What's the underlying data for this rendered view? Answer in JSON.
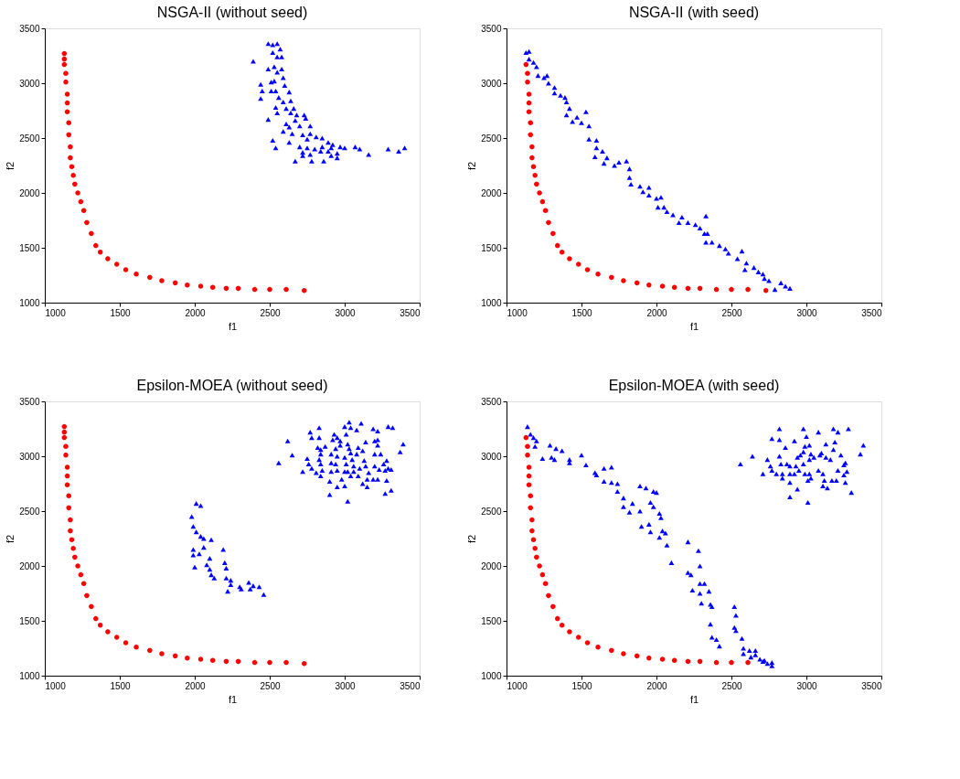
{
  "chart_data": [
    {
      "type": "scatter",
      "title": "NSGA-II (without seed)",
      "xlabel": "f1",
      "ylabel": "f2",
      "xlim": [
        1000,
        3500
      ],
      "ylim": [
        1000,
        3500
      ],
      "xticks": [
        1000,
        1500,
        2000,
        2500,
        3000,
        3500
      ],
      "yticks": [
        1000,
        1500,
        2000,
        2500,
        3000,
        3500
      ],
      "grid": false,
      "series": [
        {
          "color": "#ff0000",
          "marker": "circle",
          "x": [
            1130,
            1130,
            1130,
            1140,
            1140,
            1150,
            1150,
            1150,
            1160,
            1160,
            1170,
            1170,
            1180,
            1190,
            1200,
            1220,
            1240,
            1260,
            1280,
            1310,
            1340,
            1370,
            1420,
            1480,
            1540,
            1610,
            1700,
            1780,
            1870,
            1950,
            2040,
            2120,
            2210,
            2290,
            2400,
            2500,
            2610,
            2730
          ],
          "values": [
            3270,
            3220,
            3170,
            3090,
            3010,
            2900,
            2820,
            2740,
            2640,
            2530,
            2420,
            2320,
            2240,
            2160,
            2080,
            2000,
            1920,
            1840,
            1730,
            1630,
            1520,
            1460,
            1400,
            1350,
            1300,
            1260,
            1230,
            1200,
            1180,
            1160,
            1150,
            1140,
            1130,
            1130,
            1120,
            1120,
            1120,
            1110
          ]
        },
        {
          "color": "#0000ff",
          "marker": "triangle",
          "x": [
            2490,
            2520,
            2550,
            2570,
            2520,
            2550,
            2580,
            2390,
            2490,
            2530,
            2580,
            2550,
            2590,
            2510,
            2530,
            2440,
            2600,
            2450,
            2510,
            2540,
            2630,
            2440,
            2560,
            2590,
            2640,
            2540,
            2610,
            2660,
            2550,
            2640,
            2680,
            2730,
            2490,
            2610,
            2670,
            2740,
            2770,
            2630,
            2700,
            2590,
            2650,
            2720,
            2770,
            2520,
            2630,
            2750,
            2810,
            2850,
            2890,
            2920,
            2540,
            2700,
            2750,
            2800,
            2850,
            2910,
            2970,
            3000,
            2720,
            2770,
            2840,
            2890,
            2950,
            3070,
            3100,
            2720,
            2910,
            2950,
            3160,
            3290,
            3360,
            3400,
            2670,
            2780,
            2860
          ],
          "values": [
            3360,
            3350,
            3360,
            3310,
            3280,
            3240,
            3240,
            3200,
            3130,
            3150,
            3130,
            3100,
            3050,
            3010,
            3020,
            2990,
            2980,
            2930,
            2930,
            2930,
            2920,
            2860,
            2870,
            2830,
            2840,
            2780,
            2770,
            2770,
            2730,
            2730,
            2710,
            2710,
            2670,
            2630,
            2660,
            2680,
            2610,
            2600,
            2610,
            2560,
            2540,
            2530,
            2540,
            2480,
            2460,
            2490,
            2510,
            2500,
            2460,
            2440,
            2410,
            2420,
            2410,
            2400,
            2420,
            2410,
            2420,
            2410,
            2370,
            2350,
            2380,
            2380,
            2360,
            2420,
            2400,
            2340,
            2340,
            2320,
            2350,
            2400,
            2380,
            2410,
            2290,
            2290,
            2290
          ]
        }
      ]
    },
    {
      "type": "scatter",
      "title": "NSGA-II (with seed)",
      "xlabel": "f1",
      "ylabel": "f2",
      "xlim": [
        1000,
        3500
      ],
      "ylim": [
        1000,
        3500
      ],
      "xticks": [
        1000,
        1500,
        2000,
        2500,
        3000,
        3500
      ],
      "yticks": [
        1000,
        1500,
        2000,
        2500,
        3000,
        3500
      ],
      "grid": false,
      "series": [
        {
          "color": "#ff0000",
          "marker": "circle",
          "x": [
            1130,
            1140,
            1140,
            1150,
            1150,
            1150,
            1160,
            1160,
            1170,
            1170,
            1180,
            1190,
            1200,
            1220,
            1240,
            1260,
            1280,
            1310,
            1340,
            1370,
            1420,
            1480,
            1540,
            1610,
            1700,
            1780,
            1870,
            1950,
            2040,
            2120,
            2210,
            2290,
            2400,
            2500,
            2610,
            2730
          ],
          "values": [
            3170,
            3090,
            3010,
            2900,
            2820,
            2740,
            2640,
            2530,
            2420,
            2320,
            2240,
            2160,
            2080,
            2000,
            1920,
            1840,
            1730,
            1630,
            1520,
            1460,
            1400,
            1350,
            1300,
            1260,
            1230,
            1200,
            1180,
            1160,
            1150,
            1140,
            1130,
            1130,
            1120,
            1120,
            1120,
            1110
          ]
        },
        {
          "color": "#0000ff",
          "marker": "triangle",
          "x": [
            1130,
            1150,
            1150,
            1180,
            1200,
            1210,
            1250,
            1270,
            1280,
            1320,
            1320,
            1360,
            1390,
            1400,
            1420,
            1400,
            1470,
            1440,
            1500,
            1530,
            1550,
            1550,
            1600,
            1600,
            1640,
            1590,
            1670,
            1650,
            1720,
            1750,
            1800,
            1820,
            1820,
            1830,
            1890,
            1910,
            1950,
            1950,
            2000,
            2030,
            2010,
            2050,
            2070,
            2110,
            2170,
            2150,
            2210,
            2260,
            2290,
            2330,
            2320,
            2340,
            2330,
            2370,
            2420,
            2460,
            2480,
            2540,
            2570,
            2600,
            2590,
            2650,
            2680,
            2710,
            2720,
            2750,
            2790,
            2830,
            2860,
            2890
          ],
          "values": [
            3280,
            3290,
            3220,
            3190,
            3150,
            3070,
            3050,
            3070,
            3000,
            2960,
            2910,
            2890,
            2870,
            2830,
            2770,
            2710,
            2690,
            2650,
            2640,
            2740,
            2610,
            2490,
            2480,
            2410,
            2380,
            2330,
            2320,
            2270,
            2250,
            2280,
            2290,
            2220,
            2140,
            2080,
            2060,
            2010,
            2050,
            1980,
            1950,
            1960,
            1870,
            1870,
            1830,
            1800,
            1780,
            1730,
            1730,
            1710,
            1680,
            1790,
            1630,
            1630,
            1550,
            1550,
            1520,
            1490,
            1450,
            1400,
            1470,
            1360,
            1300,
            1320,
            1280,
            1260,
            1220,
            1200,
            1120,
            1180,
            1150,
            1130
          ]
        }
      ]
    },
    {
      "type": "scatter",
      "title": "Epsilon-MOEA (without seed)",
      "xlabel": "f1",
      "ylabel": "f2",
      "xlim": [
        1000,
        3500
      ],
      "ylim": [
        1000,
        3500
      ],
      "xticks": [
        1000,
        1500,
        2000,
        2500,
        3000,
        3500
      ],
      "yticks": [
        1000,
        1500,
        2000,
        2500,
        3000,
        3500
      ],
      "grid": false,
      "series": [
        {
          "color": "#ff0000",
          "marker": "circle",
          "x": [
            1130,
            1130,
            1130,
            1140,
            1140,
            1150,
            1150,
            1150,
            1160,
            1160,
            1170,
            1170,
            1180,
            1190,
            1200,
            1220,
            1240,
            1260,
            1280,
            1310,
            1340,
            1370,
            1420,
            1480,
            1540,
            1610,
            1700,
            1780,
            1870,
            1950,
            2040,
            2120,
            2210,
            2290,
            2400,
            2500,
            2610,
            2730
          ],
          "values": [
            3270,
            3220,
            3170,
            3090,
            3010,
            2900,
            2820,
            2740,
            2640,
            2530,
            2420,
            2320,
            2240,
            2160,
            2080,
            2000,
            1920,
            1840,
            1730,
            1630,
            1520,
            1460,
            1400,
            1350,
            1300,
            1260,
            1230,
            1200,
            1180,
            1160,
            1150,
            1140,
            1130,
            1130,
            1120,
            1120,
            1120,
            1110
          ]
        },
        {
          "color": "#0000ff",
          "marker": "triangle",
          "x": [
            2010,
            2040,
            1980,
            1990,
            2010,
            2040,
            2060,
            2110,
            1990,
            2060,
            2190,
            2030,
            1990,
            2100,
            2000,
            2080,
            2200,
            2210,
            2100,
            2110,
            2130,
            2210,
            2240,
            2240,
            2220,
            2300,
            2360,
            2390,
            2430,
            2370,
            2310,
            2460
          ],
          "values": [
            2570,
            2550,
            2450,
            2360,
            2310,
            2270,
            2250,
            2240,
            2150,
            2170,
            2150,
            2110,
            2100,
            2070,
            1990,
            2010,
            2030,
            1980,
            1970,
            1920,
            1890,
            1890,
            1870,
            1830,
            1770,
            1810,
            1850,
            1820,
            1810,
            1790,
            1790,
            1740
          ]
        },
        {
          "color": "#0000ff",
          "marker": "triangle",
          "x": [
            2560,
            2620,
            2650,
            2720,
            2770,
            2780,
            2830,
            2830,
            2750,
            2760,
            2780,
            2810,
            2820,
            2840,
            2840,
            2870,
            2830,
            2840,
            2850,
            2840,
            2900,
            2900,
            2910,
            2910,
            2930,
            2920,
            2950,
            2940,
            2950,
            2940,
            2910,
            2950,
            2950,
            3000,
            2980,
            3000,
            3010,
            3000,
            2970,
            2970,
            3010,
            3000,
            3030,
            3040,
            3080,
            3110,
            3020,
            3030,
            3040,
            3050,
            3060,
            3020,
            3040,
            3060,
            3090,
            3100,
            3080,
            3090,
            3120,
            3140,
            3130,
            3140,
            3160,
            3150,
            3120,
            3150,
            3190,
            3220,
            3200,
            3220,
            3220,
            3200,
            3240,
            3200,
            3230,
            3190,
            3220,
            3270,
            3260,
            3280,
            3290,
            3310,
            3280,
            3270,
            3310,
            3290,
            3320,
            3370,
            3390,
            3020
          ],
          "values": [
            2940,
            3140,
            3010,
            2860,
            3220,
            3170,
            3260,
            3170,
            2980,
            2930,
            2890,
            2850,
            3080,
            3060,
            3020,
            3090,
            2970,
            2930,
            2870,
            2820,
            2770,
            2650,
            3020,
            2940,
            3200,
            3150,
            3170,
            3070,
            3000,
            2930,
            2860,
            2870,
            2720,
            2730,
            2790,
            2860,
            2930,
            2990,
            3100,
            3140,
            3200,
            3270,
            3310,
            3260,
            3240,
            3300,
            3110,
            3070,
            3030,
            2970,
            2910,
            2860,
            2820,
            2860,
            2820,
            2890,
            3020,
            3080,
            3050,
            3130,
            2960,
            2910,
            2850,
            2790,
            2750,
            2720,
            3250,
            3230,
            3140,
            3150,
            3100,
            3020,
            3020,
            2910,
            2880,
            2790,
            2790,
            2870,
            2930,
            2960,
            2890,
            2880,
            2780,
            2660,
            2690,
            3270,
            3260,
            3040,
            3110,
            2590
          ]
        }
      ]
    },
    {
      "type": "scatter",
      "title": "Epsilon-MOEA (with seed)",
      "xlabel": "f1",
      "ylabel": "f2",
      "xlim": [
        1000,
        3500
      ],
      "ylim": [
        1000,
        3500
      ],
      "xticks": [
        1000,
        1500,
        2000,
        2500,
        3000,
        3500
      ],
      "yticks": [
        1000,
        1500,
        2000,
        2500,
        3000,
        3500
      ],
      "grid": false,
      "series": [
        {
          "color": "#ff0000",
          "marker": "circle",
          "x": [
            1130,
            1140,
            1140,
            1150,
            1150,
            1150,
            1160,
            1160,
            1170,
            1170,
            1180,
            1190,
            1200,
            1220,
            1240,
            1260,
            1280,
            1310,
            1340,
            1370,
            1420,
            1480,
            1540,
            1610,
            1700,
            1780,
            1870,
            1950,
            2040,
            2120,
            2210,
            2290,
            2400,
            2500,
            2610
          ],
          "values": [
            3170,
            3090,
            3010,
            2900,
            2820,
            2740,
            2640,
            2530,
            2420,
            2320,
            2240,
            2160,
            2080,
            2000,
            1920,
            1840,
            1730,
            1630,
            1520,
            1460,
            1400,
            1350,
            1300,
            1260,
            1230,
            1200,
            1180,
            1160,
            1150,
            1140,
            1130,
            1130,
            1120,
            1120,
            1120
          ]
        },
        {
          "color": "#0000ff",
          "marker": "triangle",
          "x": [
            1140,
            1160,
            1180,
            1200,
            1190,
            1240,
            1290,
            1330,
            1370,
            1300,
            1320,
            1420,
            1420,
            1500,
            1530,
            1590,
            1600,
            1650,
            1700,
            1650,
            1700,
            1740,
            1740,
            1780,
            1840,
            1780,
            1820,
            1890,
            1930,
            1980,
            2000,
            1960,
            1980,
            1890,
            2020,
            2030,
            1900,
            1950,
            1960,
            2040,
            2060,
            2020,
            2070,
            2100,
            2210,
            2280,
            2290,
            2210,
            2230,
            2240,
            2290,
            2320,
            2290,
            2350,
            2300,
            2360,
            2370,
            2360,
            2370,
            2400,
            2420,
            2520,
            2530,
            2520,
            2530,
            2570,
            2580,
            2580,
            2620,
            2630,
            2660,
            2660,
            2690,
            2710,
            2720,
            2740,
            2770,
            2770
          ],
          "values": [
            3270,
            3200,
            3170,
            3140,
            3090,
            2980,
            3100,
            3070,
            3050,
            2990,
            2970,
            2970,
            2940,
            3010,
            2920,
            2850,
            2830,
            2890,
            2900,
            2770,
            2760,
            2750,
            2680,
            2620,
            2570,
            2540,
            2490,
            2730,
            2710,
            2680,
            2670,
            2580,
            2540,
            2500,
            2480,
            2440,
            2360,
            2380,
            2310,
            2320,
            2300,
            2260,
            2190,
            2030,
            2220,
            2140,
            2000,
            1940,
            1920,
            1780,
            1840,
            1840,
            1750,
            1770,
            1660,
            1650,
            1630,
            1470,
            1350,
            1330,
            1270,
            1630,
            1550,
            1440,
            1410,
            1340,
            1250,
            1200,
            1230,
            1170,
            1230,
            1190,
            1150,
            1130,
            1140,
            1110,
            1120,
            1090
          ]
        },
        {
          "color": "#0000ff",
          "marker": "triangle",
          "x": [
            2560,
            2640,
            2710,
            2740,
            2760,
            2770,
            2770,
            2800,
            2820,
            2820,
            2820,
            2830,
            2840,
            2840,
            2860,
            2870,
            2890,
            2890,
            2890,
            2890,
            2920,
            2920,
            2930,
            2940,
            2940,
            2950,
            2960,
            2980,
            2980,
            2990,
            2980,
            2990,
            3000,
            3010,
            3010,
            3020,
            3020,
            3020,
            3030,
            3030,
            3050,
            3080,
            3080,
            3090,
            3100,
            3110,
            3110,
            3120,
            3130,
            3130,
            3140,
            3160,
            3170,
            3180,
            3180,
            3190,
            3210,
            3200,
            3210,
            3230,
            3250,
            3250,
            3260,
            3270,
            3260,
            3280,
            3300,
            3360,
            3380
          ],
          "values": [
            2930,
            3000,
            2840,
            2970,
            2910,
            3160,
            2870,
            2840,
            3250,
            3150,
            3000,
            2930,
            2800,
            2840,
            3080,
            2930,
            2840,
            2910,
            2760,
            2630,
            2840,
            3140,
            2910,
            2700,
            2990,
            2870,
            3010,
            2930,
            3250,
            3090,
            3040,
            2840,
            3180,
            2780,
            2580,
            3100,
            2970,
            2840,
            2800,
            3020,
            2990,
            3220,
            2870,
            3010,
            3030,
            2730,
            2840,
            2780,
            2990,
            3110,
            2710,
            2970,
            2780,
            3060,
            3250,
            3130,
            3220,
            2780,
            2870,
            3010,
            2920,
            2830,
            2940,
            2860,
            2760,
            3250,
            2670,
            3020,
            3100
          ]
        }
      ]
    }
  ]
}
